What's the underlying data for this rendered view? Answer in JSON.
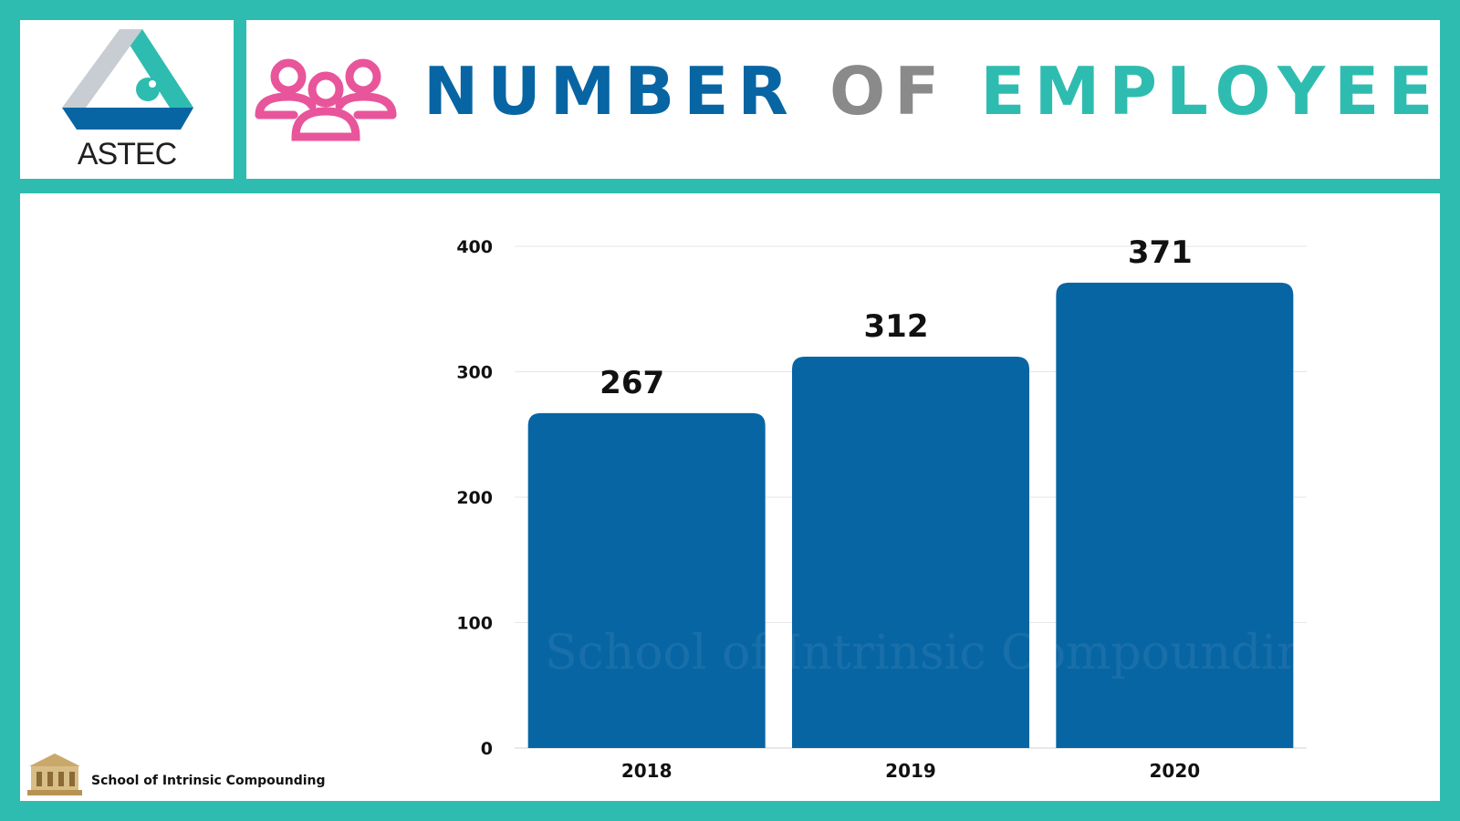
{
  "logo": {
    "text": "ASTEC",
    "icon": "astec-triangle-logo"
  },
  "header": {
    "icon": "people-group-icon",
    "title_parts": [
      "NUMBER",
      "OF",
      "EMPLOYEES"
    ],
    "colors": {
      "number": "#0865a3",
      "of": "#8a8a8a",
      "employees": "#2fbcb0",
      "icon": "#e8559b"
    }
  },
  "chart_data": {
    "type": "bar",
    "categories": [
      "2018",
      "2019",
      "2020"
    ],
    "values": [
      267,
      312,
      371
    ],
    "data_labels": [
      "267",
      "312",
      "371"
    ],
    "title": "",
    "xlabel": "",
    "ylabel": "",
    "ylim": [
      0,
      400
    ],
    "yticks": [
      "0",
      "100",
      "200",
      "300",
      "400"
    ],
    "grid": true,
    "bar_color": "#0865a3"
  },
  "watermark": {
    "text": "School of Intrinsic Compounding"
  },
  "footer": {
    "brand": "School of Intrinsic Compounding",
    "icon": "bank-building-icon"
  },
  "theme": {
    "border": "#2fbcb0"
  }
}
